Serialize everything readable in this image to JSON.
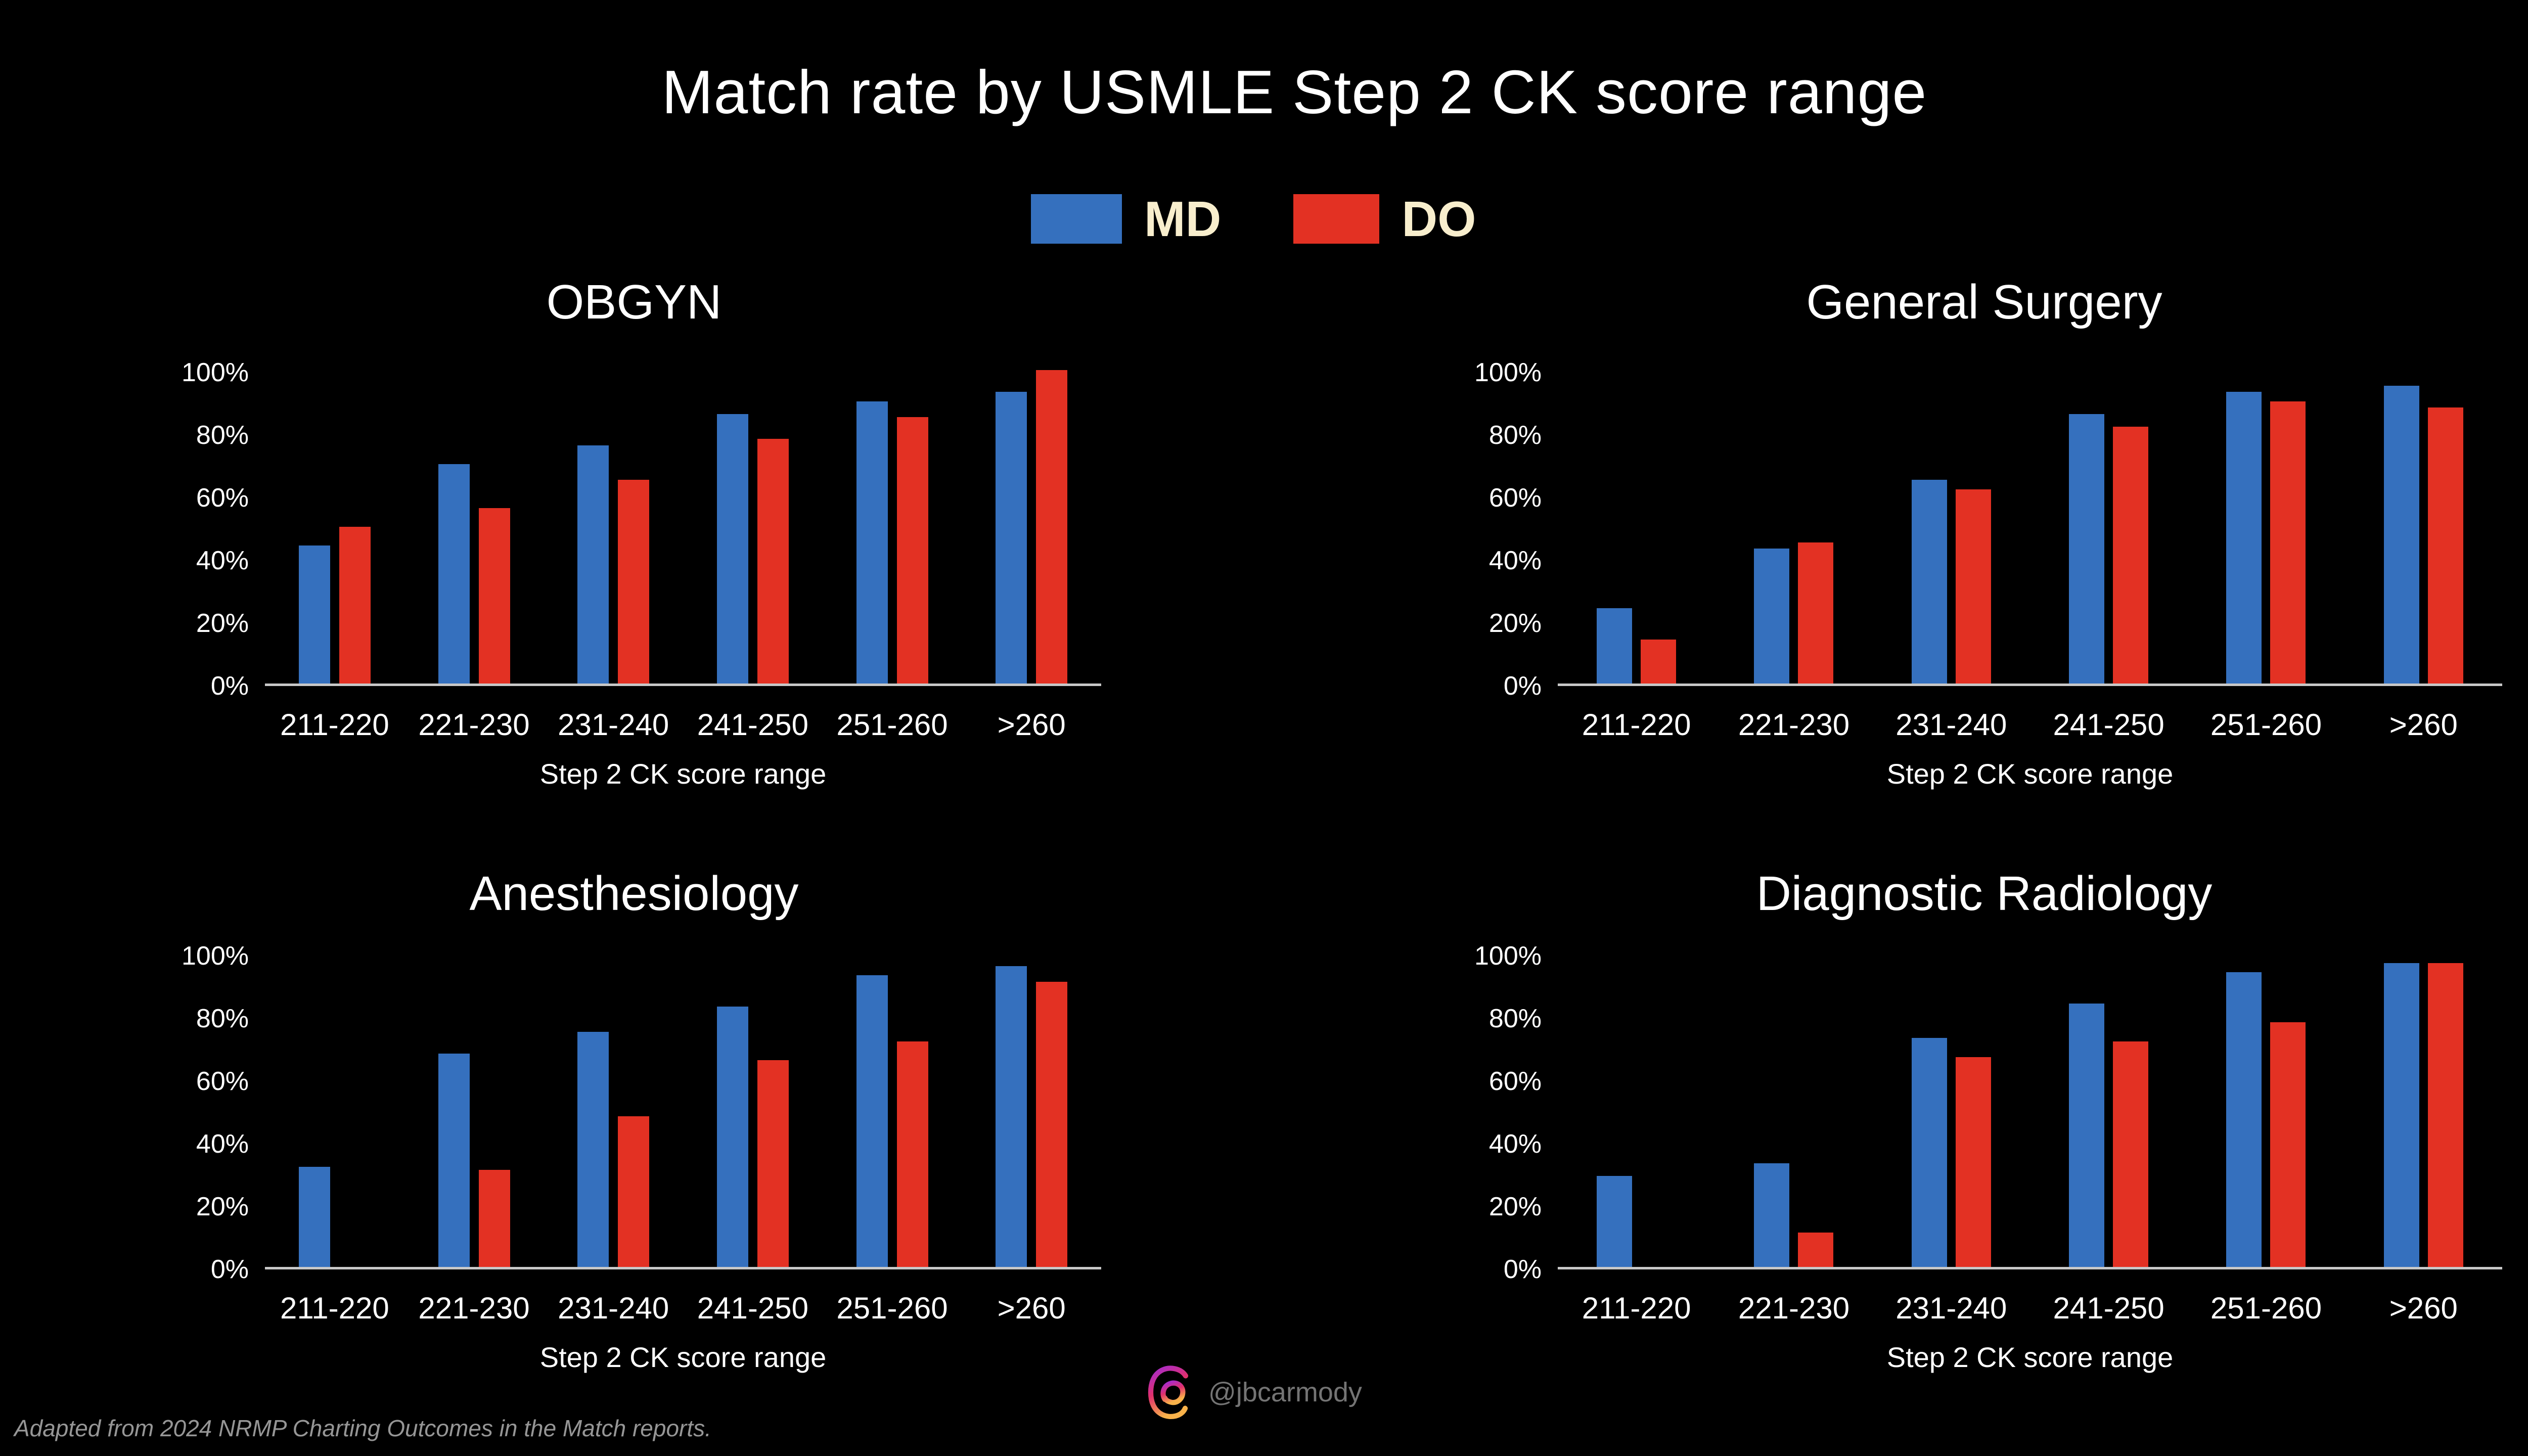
{
  "page": {
    "background": "#000000"
  },
  "title": {
    "text": "Match rate by USMLE Step 2 CK score range",
    "color": "#FFFFFF"
  },
  "legend": {
    "label_color": "#F8EECD",
    "items": [
      {
        "label": "MD",
        "color": "#3570BE"
      },
      {
        "label": "DO",
        "color": "#E33123"
      }
    ]
  },
  "footer": {
    "text": "Adapted from 2024 NRMP Charting Outcomes in the Match reports.",
    "color": "#969696"
  },
  "watermark": {
    "icon": "threads-logo",
    "handle": "@jbcarmody",
    "color": "#747474"
  },
  "chart_data": [
    {
      "type": "bar",
      "title": "OBGYN",
      "categories": [
        "211-220",
        "221-230",
        "231-240",
        "241-250",
        "251-260",
        ">260"
      ],
      "series": [
        {
          "name": "MD",
          "color": "#3570BE",
          "values": [
            44,
            70,
            76,
            86,
            90,
            93
          ]
        },
        {
          "name": "DO",
          "color": "#E33123",
          "values": [
            50,
            56,
            65,
            78,
            85,
            100
          ]
        }
      ],
      "xlabel": "Step 2 CK score range",
      "ylabel": "",
      "ylim": [
        0,
        100
      ],
      "yticks": [
        "0%",
        "20%",
        "40%",
        "60%",
        "80%",
        "100%"
      ],
      "grid": false,
      "legend_position": "top-shared"
    },
    {
      "type": "bar",
      "title": "General Surgery",
      "categories": [
        "211-220",
        "221-230",
        "231-240",
        "241-250",
        "251-260",
        ">260"
      ],
      "series": [
        {
          "name": "MD",
          "color": "#3570BE",
          "values": [
            24,
            43,
            65,
            86,
            93,
            95
          ]
        },
        {
          "name": "DO",
          "color": "#E33123",
          "values": [
            14,
            45,
            62,
            82,
            90,
            88
          ]
        }
      ],
      "xlabel": "Step 2 CK score range",
      "ylabel": "",
      "ylim": [
        0,
        100
      ],
      "yticks": [
        "0%",
        "20%",
        "40%",
        "60%",
        "80%",
        "100%"
      ],
      "grid": false,
      "legend_position": "top-shared"
    },
    {
      "type": "bar",
      "title": "Anesthesiology",
      "categories": [
        "211-220",
        "221-230",
        "231-240",
        "241-250",
        "251-260",
        ">260"
      ],
      "series": [
        {
          "name": "MD",
          "color": "#3570BE",
          "values": [
            32,
            68,
            75,
            83,
            93,
            96
          ]
        },
        {
          "name": "DO",
          "color": "#E33123",
          "values": [
            0,
            31,
            48,
            66,
            72,
            91
          ]
        }
      ],
      "xlabel": "Step 2 CK score range",
      "ylabel": "",
      "ylim": [
        0,
        100
      ],
      "yticks": [
        "0%",
        "20%",
        "40%",
        "60%",
        "80%",
        "100%"
      ],
      "grid": false,
      "legend_position": "top-shared"
    },
    {
      "type": "bar",
      "title": "Diagnostic Radiology",
      "categories": [
        "211-220",
        "221-230",
        "231-240",
        "241-250",
        "251-260",
        ">260"
      ],
      "series": [
        {
          "name": "MD",
          "color": "#3570BE",
          "values": [
            29,
            33,
            73,
            84,
            94,
            97
          ]
        },
        {
          "name": "DO",
          "color": "#E33123",
          "values": [
            0,
            11,
            67,
            72,
            78,
            97
          ]
        }
      ],
      "xlabel": "Step 2 CK score range",
      "ylabel": "",
      "ylim": [
        0,
        100
      ],
      "yticks": [
        "0%",
        "20%",
        "40%",
        "60%",
        "80%",
        "100%"
      ],
      "grid": false,
      "legend_position": "top-shared"
    }
  ]
}
